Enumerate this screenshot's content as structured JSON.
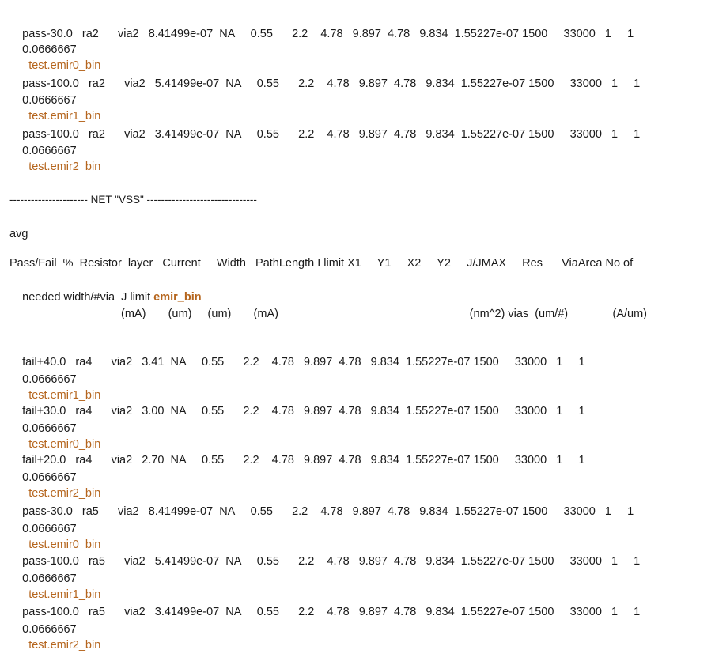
{
  "colors": {
    "text": "#1a1a1a",
    "bin_accent": "#b5651d",
    "background": "#ffffff"
  },
  "records_top": [
    {
      "row": "pass-30.0   ra2      via2   8.41499e-07  NA     0.55      2.2    4.78   9.897  4.78   9.834  1.55227e-07 1500     33000   1     1",
      "prefix": "0.0666667",
      "bin": "test.emir0_bin"
    },
    {
      "row": "pass-100.0   ra2      via2   5.41499e-07  NA     0.55      2.2    4.78   9.897  4.78   9.834  1.55227e-07 1500     33000   1     1",
      "prefix": "0.0666667",
      "bin": "test.emir1_bin"
    },
    {
      "row": "pass-100.0   ra2      via2   3.41499e-07  NA     0.55      2.2    4.78   9.897  4.78   9.834  1.55227e-07 1500     33000   1     1",
      "prefix": "0.0666667",
      "bin": "test.emir2_bin"
    }
  ],
  "net_header": "---------------------- NET \"VSS\" -------------------------------",
  "avg_label": "avg",
  "column_header": {
    "line1": "Pass/Fail  %  Resistor  layer   Current     Width   PathLength I limit X1     Y1     X2     Y2     J/JMAX     Res      ViaArea No of",
    "line2_prefix": "needed width/#via  J limit ",
    "line2_bin": "emir_bin"
  },
  "units_row": "                                   (mA)       (um)     (um)       (mA)                                                            (nm^2) vias  (um/#)              (A/um)",
  "records_bottom": [
    {
      "row": "fail+40.0   ra4      via2   3.41  NA     0.55      2.2    4.78   9.897  4.78   9.834  1.55227e-07 1500     33000   1     1",
      "prefix": "0.0666667",
      "bin": "test.emir1_bin"
    },
    {
      "row": "fail+30.0   ra4      via2   3.00  NA     0.55      2.2    4.78   9.897  4.78   9.834  1.55227e-07 1500     33000   1     1",
      "prefix": "0.0666667",
      "bin": "test.emir0_bin"
    },
    {
      "row": "fail+20.0   ra4      via2   2.70  NA     0.55      2.2    4.78   9.897  4.78   9.834  1.55227e-07 1500     33000   1     1",
      "prefix": "0.0666667",
      "bin": "test.emir2_bin"
    },
    {
      "row": "pass-30.0   ra5      via2   8.41499e-07  NA     0.55      2.2    4.78   9.897  4.78   9.834  1.55227e-07 1500     33000   1     1",
      "prefix": "0.0666667",
      "bin": "test.emir0_bin"
    },
    {
      "row": "pass-100.0   ra5      via2   5.41499e-07  NA     0.55      2.2    4.78   9.897  4.78   9.834  1.55227e-07 1500     33000   1     1",
      "prefix": "0.0666667",
      "bin": "test.emir1_bin"
    },
    {
      "row": "pass-100.0   ra5      via2   3.41499e-07  NA     0.55      2.2    4.78   9.897  4.78   9.834  1.55227e-07 1500     33000   1     1",
      "prefix": "0.0666667",
      "bin": "test.emir2_bin"
    }
  ]
}
